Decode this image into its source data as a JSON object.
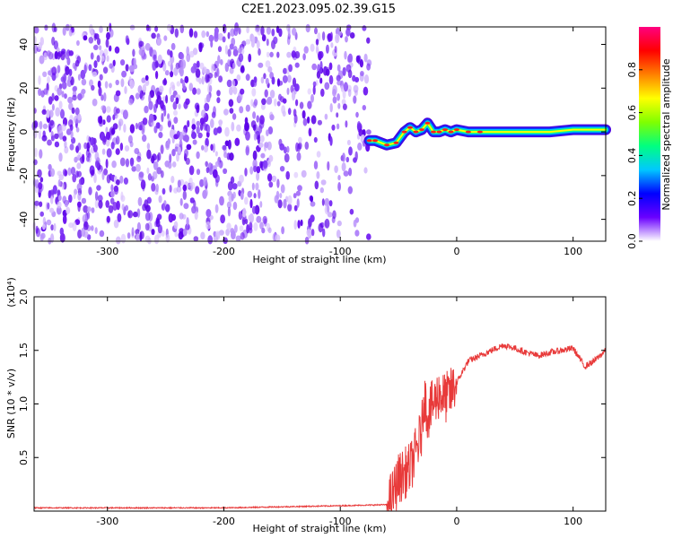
{
  "title": "C2E1.2023.095.02.39.G15",
  "chart_data": [
    {
      "type": "heatmap",
      "xlabel": "Height of straight line (km)",
      "ylabel": "Frequency (Hz)",
      "xlim": [
        -363,
        128
      ],
      "ylim": [
        -50,
        48
      ],
      "xticks": [
        -300,
        -200,
        -100,
        0,
        100
      ],
      "xtick_labels": [
        "-300",
        "-200",
        "-100",
        "0",
        "100"
      ],
      "yticks": [
        -40,
        -20,
        0,
        20,
        40
      ],
      "ytick_labels": [
        "-40",
        "-20",
        "0",
        "20",
        "40"
      ],
      "colorbar": {
        "label": "Normalized spectral amplitude",
        "range": [
          0,
          1
        ],
        "ticks": [
          0.0,
          0.2,
          0.4,
          0.6,
          0.8
        ],
        "tick_labels": [
          "0.0",
          "0.2",
          "0.4",
          "0.6",
          "0.8"
        ],
        "colors": [
          "#ffffff",
          "#6a00ff",
          "#0000ff",
          "#00c8ff",
          "#00ff80",
          "#80ff00",
          "#ffff00",
          "#ff8000",
          "#ff0000",
          "#ff0080"
        ]
      },
      "noise_region_x": [
        -363,
        -75
      ],
      "signal_trace": {
        "x": [
          -75,
          -70,
          -60,
          -52,
          -45,
          -40,
          -35,
          -30,
          -25,
          -20,
          -15,
          -10,
          -5,
          0,
          10,
          20,
          40,
          60,
          80,
          100,
          128
        ],
        "y": [
          -4,
          -4,
          -6,
          -5,
          0,
          2,
          0,
          1,
          4,
          0,
          0,
          1,
          0,
          1,
          0,
          0,
          0,
          0,
          0,
          1,
          1
        ]
      },
      "grid": false
    },
    {
      "type": "line",
      "xlabel": "Height of straight line (km)",
      "ylabel": "SNR (10 * v/v)",
      "y_multiplier": "(x10⁴)",
      "xlim": [
        -363,
        128
      ],
      "ylim": [
        0,
        2.0
      ],
      "xticks": [
        -300,
        -200,
        -100,
        0,
        100
      ],
      "xtick_labels": [
        "-300",
        "-200",
        "-100",
        "0",
        "100"
      ],
      "yticks": [
        0.5,
        1.0,
        1.5,
        2.0
      ],
      "ytick_labels": [
        "0.5",
        "1.0",
        "1.5",
        "2.0"
      ],
      "color": "#e83a3a",
      "series": [
        {
          "x": [
            -363,
            -300,
            -200,
            -100,
            -60,
            -55,
            -50,
            -45,
            -40,
            -35,
            -30,
            -28,
            -25,
            -20,
            -15,
            -10,
            -5,
            0,
            5,
            10,
            20,
            30,
            40,
            50,
            60,
            70,
            80,
            90,
            100,
            110,
            118,
            128
          ],
          "y": [
            0.03,
            0.03,
            0.03,
            0.05,
            0.06,
            0.15,
            0.3,
            0.35,
            0.4,
            0.55,
            0.75,
            1.1,
            0.9,
            1.0,
            1.1,
            1.05,
            1.1,
            1.2,
            1.3,
            1.4,
            1.45,
            1.5,
            1.55,
            1.52,
            1.48,
            1.45,
            1.48,
            1.5,
            1.52,
            1.35,
            1.4,
            1.5
          ]
        }
      ],
      "grid": false
    }
  ]
}
